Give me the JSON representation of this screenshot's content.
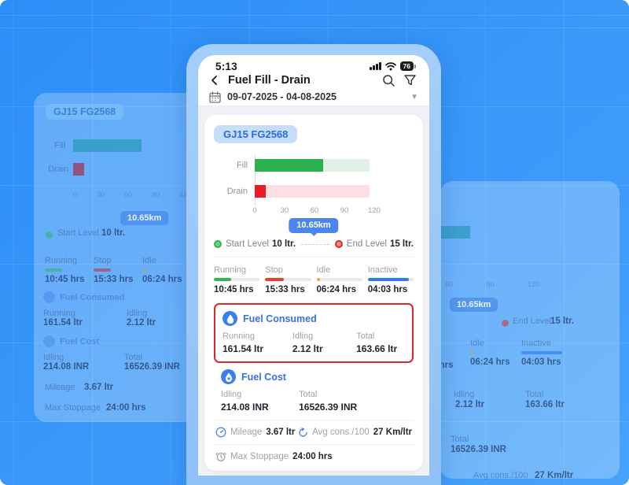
{
  "status_bar": {
    "time": "5:13",
    "battery_level": "76"
  },
  "header": {
    "title": "Fuel Fill - Drain"
  },
  "date_filter": {
    "range": "09-07-2025 - 04-08-2025"
  },
  "card": {
    "vehicle_badge": "GJ15 FG2568",
    "distance_tooltip": "10.65km",
    "start_level": {
      "label": "Start Level",
      "value": "10 ltr."
    },
    "end_level": {
      "label": "End Level",
      "value": "15 ltr."
    },
    "statuses": [
      {
        "label": "Running",
        "value": "10:45 hrs",
        "color": "#2DB84D",
        "pct": 38
      },
      {
        "label": "Stop",
        "value": "15:33 hrs",
        "color": "#F23B2F",
        "pct": 40
      },
      {
        "label": "Idle",
        "value": "06:24 hrs",
        "color": "#F5A61D",
        "pct": 7
      },
      {
        "label": "Inactive",
        "value": "04:03 hrs",
        "color": "#2F7BF3",
        "pct": 90
      }
    ],
    "fuel_consumed": {
      "title": "Fuel Consumed",
      "items": [
        {
          "label": "Running",
          "value": "161.54 ltr"
        },
        {
          "label": "Idling",
          "value": "2.12 ltr"
        },
        {
          "label": "Total",
          "value": "163.66 ltr"
        }
      ]
    },
    "fuel_cost": {
      "title": "Fuel Cost",
      "items": [
        {
          "label": "Idling",
          "value": "214.08 INR"
        },
        {
          "label": "Total",
          "value": "16526.39 INR"
        }
      ]
    },
    "metrics": [
      {
        "label": "Mileage",
        "value": "3.67 ltr"
      },
      {
        "label": "Avg cons./100",
        "value": "27 Km/ltr"
      },
      {
        "label": "Max Stoppage",
        "value": "24:00 hrs"
      }
    ]
  },
  "chart_data": {
    "type": "bar",
    "orientation": "horizontal",
    "title": "",
    "categories": [
      "Fill",
      "Drain"
    ],
    "values": [
      69,
      11
    ],
    "track_values": [
      115,
      115
    ],
    "xlim": [
      0,
      120
    ],
    "xticks": [
      0,
      30,
      60,
      90,
      120
    ],
    "colors": {
      "fill": "#2BB14E",
      "fill_track": "#DFF1E4",
      "drain": "#EC1C24",
      "drain_track": "#FBDFE2"
    }
  }
}
